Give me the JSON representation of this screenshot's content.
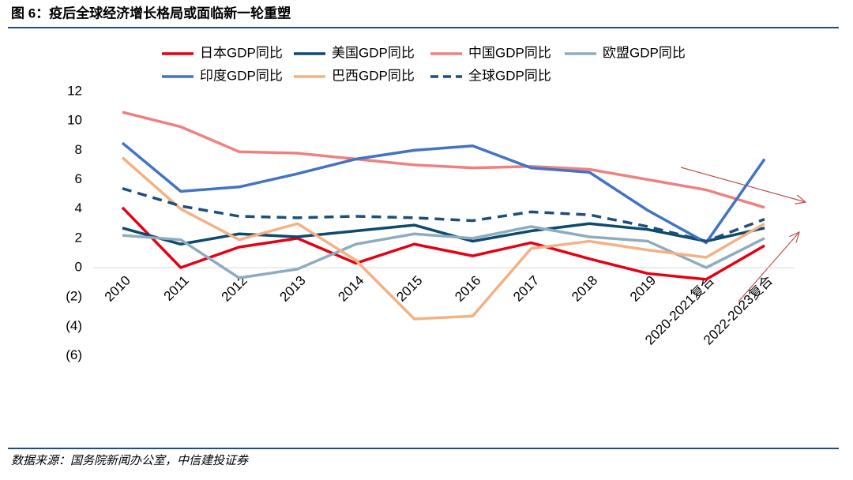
{
  "title": "图 6：疫后全球经济增长格局或面临新一轮重塑",
  "source": "数据来源：国务院新闻办公室，中信建投证券",
  "chart_data": {
    "type": "line",
    "categories": [
      "2010",
      "2011",
      "2012",
      "2013",
      "2014",
      "2015",
      "2016",
      "2017",
      "2018",
      "2019",
      "2020-2021复合",
      "2022-2023复合"
    ],
    "series": [
      {
        "name": "日本GDP同比",
        "color": "#e60012",
        "values": [
          4.1,
          0.0,
          1.4,
          2.0,
          0.3,
          1.6,
          0.8,
          1.7,
          0.6,
          -0.4,
          -0.8,
          1.5
        ]
      },
      {
        "name": "美国GDP同比",
        "color": "#0d4a6e",
        "values": [
          2.7,
          1.6,
          2.3,
          2.1,
          2.5,
          2.9,
          1.8,
          2.5,
          3.0,
          2.6,
          1.8,
          2.7
        ]
      },
      {
        "name": "中国GDP同比",
        "color": "#f08080",
        "values": [
          10.6,
          9.6,
          7.9,
          7.8,
          7.4,
          7.0,
          6.8,
          6.9,
          6.7,
          6.0,
          5.3,
          4.1
        ]
      },
      {
        "name": "欧盟GDP同比",
        "color": "#8eacc0",
        "values": [
          2.2,
          1.9,
          -0.7,
          -0.1,
          1.6,
          2.3,
          2.0,
          2.8,
          2.1,
          1.8,
          0.0,
          2.0
        ]
      },
      {
        "name": "印度GDP同比",
        "color": "#4472c4",
        "values": [
          8.5,
          5.2,
          5.5,
          6.4,
          7.4,
          8.0,
          8.3,
          6.8,
          6.5,
          3.9,
          1.7,
          7.4
        ]
      },
      {
        "name": "巴西GDP同比",
        "color": "#f4b183",
        "values": [
          7.5,
          4.0,
          1.9,
          3.0,
          0.5,
          -3.5,
          -3.3,
          1.3,
          1.8,
          1.2,
          0.7,
          3.0
        ]
      },
      {
        "name": "全球GDP同比",
        "color": "#1f4e79",
        "dashed": true,
        "values": [
          5.4,
          4.2,
          3.5,
          3.4,
          3.5,
          3.4,
          3.2,
          3.8,
          3.6,
          2.8,
          1.8,
          3.3
        ]
      }
    ],
    "ylim": [
      -6,
      12
    ],
    "yticks": [
      {
        "value": -6,
        "label": "(6)"
      },
      {
        "value": -4,
        "label": "(4)"
      },
      {
        "value": -2,
        "label": "(2)"
      },
      0,
      2,
      4,
      6,
      8,
      10,
      12
    ]
  }
}
